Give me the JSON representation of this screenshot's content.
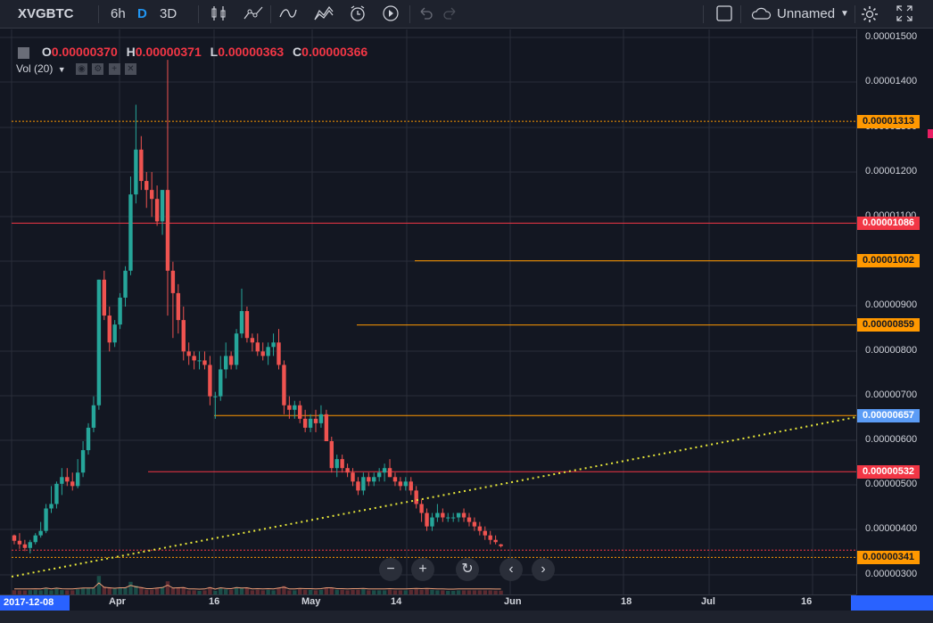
{
  "toolbar": {
    "symbol": "XVGBTC",
    "interval_6h": "6h",
    "interval_D": "D",
    "interval_3D": "3D",
    "layout_name": "Unnamed"
  },
  "legend": {
    "o_label": "O",
    "o_value": "0.00000370",
    "h_label": "H",
    "h_value": "0.00000371",
    "l_label": "L",
    "l_value": "0.00000363",
    "c_label": "C",
    "c_value": "0.00000366",
    "volume_label": "Vol (20)"
  },
  "price_axis": {
    "ticks": [
      "0.00001500",
      "0.00001400",
      "0.00001300",
      "0.00001200",
      "0.00001100",
      "0.00000900",
      "0.00000800",
      "0.00000700",
      "0.00000600",
      "0.00000500",
      "0.00000400",
      "0.00000300"
    ]
  },
  "price_tags": [
    {
      "label": "0.00001313",
      "color": "#ff9800"
    },
    {
      "label": "0.00001086",
      "color": "#f23645"
    },
    {
      "label": "0.00001002",
      "color": "#ff9800"
    },
    {
      "label": "0.00000859",
      "color": "#ff9800"
    },
    {
      "label": "0.00000657",
      "color": "#5b9cf6"
    },
    {
      "label": "0.00000532",
      "color": "#f23645"
    },
    {
      "label": "0.00000341",
      "color": "#ff9800"
    }
  ],
  "time_axis": {
    "start_date": "2017-12-08",
    "ticks": [
      "Apr",
      "16",
      "May",
      "14",
      "Jun",
      "18",
      "Jul",
      "16"
    ]
  },
  "chart_data": {
    "type": "candlestick",
    "ylim": [
      3e-06,
      1.52e-05
    ],
    "candles": [
      [
        3.9e-06,
        3.92e-06,
        3.7e-06,
        3.78e-06
      ],
      [
        3.78e-06,
        3.95e-06,
        3.6e-06,
        3.7e-06
      ],
      [
        3.7e-06,
        3.8e-06,
        3.55e-06,
        3.62e-06
      ],
      [
        3.62e-06,
        3.8e-06,
        3.5e-06,
        3.75e-06
      ],
      [
        3.75e-06,
        3.95e-06,
        3.7e-06,
        3.9e-06
      ],
      [
        3.9e-06,
        4.2e-06,
        3.85e-06,
        4e-06
      ],
      [
        4e-06,
        4.6e-06,
        3.95e-06,
        4.5e-06
      ],
      [
        4.5e-06,
        5e-06,
        4.4e-06,
        4.6e-06
      ],
      [
        4.6e-06,
        5.1e-06,
        4.5e-06,
        5.05e-06
      ],
      [
        5.05e-06,
        5.4e-06,
        4.8e-06,
        5.2e-06
      ],
      [
        5.2e-06,
        5.4e-06,
        5e-06,
        5.1e-06
      ],
      [
        5.1e-06,
        5.3e-06,
        4.9e-06,
        5e-06
      ],
      [
        5e-06,
        5.6e-06,
        4.95e-06,
        5.3e-06
      ],
      [
        5.3e-06,
        6e-06,
        5.2e-06,
        5.8e-06
      ],
      [
        5.8e-06,
        6.4e-06,
        5.7e-06,
        6.3e-06
      ],
      [
        6.3e-06,
        7e-06,
        6.2e-06,
        6.8e-06
      ],
      [
        6.8e-06,
        9.6e-06,
        6.7e-06,
        9.6e-06
      ],
      [
        9.6e-06,
        9.8e-06,
        8.7e-06,
        8.8e-06
      ],
      [
        8.8e-06,
        9e-06,
        8e-06,
        8.2e-06
      ],
      [
        8.2e-06,
        8.7e-06,
        8.1e-06,
        8.6e-06
      ],
      [
        8.6e-06,
        9.3e-06,
        8.5e-06,
        9.2e-06
      ],
      [
        9.2e-06,
        9.9e-06,
        9e-06,
        9.8e-06
      ],
      [
        9.8e-06,
        1.19e-05,
        9.7e-06,
        1.15e-05
      ],
      [
        1.15e-05,
        1.35e-05,
        1.13e-05,
        1.25e-05
      ],
      [
        1.25e-05,
        1.28e-05,
        1.16e-05,
        1.18e-05
      ],
      [
        1.18e-05,
        1.2e-05,
        1.12e-05,
        1.16e-05
      ],
      [
        1.16e-05,
        1.2e-05,
        1.1e-05,
        1.14e-05
      ],
      [
        1.14e-05,
        1.17e-05,
        1.08e-05,
        1.09e-05
      ],
      [
        1.09e-05,
        1.16e-05,
        1.06e-05,
        1.16e-05
      ],
      [
        1.16e-05,
        1.45e-05,
        8.8e-06,
        9.8e-06
      ],
      [
        9.8e-06,
        1e-05,
        8.3e-06,
        9.3e-06
      ],
      [
        9.3e-06,
        9.5e-06,
        8.4e-06,
        8.7e-06
      ],
      [
        8.7e-06,
        9e-06,
        7.8e-06,
        8e-06
      ],
      [
        8e-06,
        8.2e-06,
        7.7e-06,
        7.9e-06
      ],
      [
        7.9e-06,
        8e-06,
        7.6e-06,
        7.8e-06
      ],
      [
        7.8e-06,
        8e-06,
        7.6e-06,
        7.8e-06
      ],
      [
        7.8e-06,
        8e-06,
        7.6e-06,
        7.7e-06
      ],
      [
        7.7e-06,
        7.9e-06,
        6.8e-06,
        7e-06
      ],
      [
        7e-06,
        7.1e-06,
        6.5e-06,
        7e-06
      ],
      [
        7e-06,
        7.9e-06,
        6.9e-06,
        7.6e-06
      ],
      [
        7.6e-06,
        8.2e-06,
        7.4e-06,
        7.9e-06
      ],
      [
        7.9e-06,
        8e-06,
        7.6e-06,
        7.7e-06
      ],
      [
        7.7e-06,
        8.5e-06,
        7.6e-06,
        8.4e-06
      ],
      [
        8.4e-06,
        9.4e-06,
        8.3e-06,
        8.9e-06
      ],
      [
        8.9e-06,
        9e-06,
        8.2e-06,
        8.3e-06
      ],
      [
        8.3e-06,
        8.4e-06,
        8e-06,
        8.2e-06
      ],
      [
        8.2e-06,
        8.4e-06,
        7.9e-06,
        8e-06
      ],
      [
        8e-06,
        8.2e-06,
        7.8e-06,
        7.9e-06
      ],
      [
        7.9e-06,
        8.2e-06,
        7.7e-06,
        8.1e-06
      ],
      [
        8.1e-06,
        8.4e-06,
        7.9e-06,
        8.2e-06
      ],
      [
        8.2e-06,
        8.5e-06,
        7.6e-06,
        7.7e-06
      ],
      [
        7.7e-06,
        7.8e-06,
        6.6e-06,
        6.8e-06
      ],
      [
        6.8e-06,
        7e-06,
        6.5e-06,
        6.7e-06
      ],
      [
        6.7e-06,
        6.9e-06,
        6.5e-06,
        6.8e-06
      ],
      [
        6.8e-06,
        6.9e-06,
        6.4e-06,
        6.5e-06
      ],
      [
        6.5e-06,
        6.7e-06,
        6.2e-06,
        6.3e-06
      ],
      [
        6.3e-06,
        6.6e-06,
        6.2e-06,
        6.5e-06
      ],
      [
        6.5e-06,
        6.7e-06,
        6.2e-06,
        6.4e-06
      ],
      [
        6.4e-06,
        6.8e-06,
        6.3e-06,
        6.6e-06
      ],
      [
        6.6e-06,
        6.7e-06,
        6e-06,
        6e-06
      ],
      [
        6e-06,
        6.1e-06,
        5.3e-06,
        5.4e-06
      ],
      [
        5.4e-06,
        5.7e-06,
        5.2e-06,
        5.6e-06
      ],
      [
        5.6e-06,
        5.7e-06,
        5.3e-06,
        5.4e-06
      ],
      [
        5.4e-06,
        5.5e-06,
        5.2e-06,
        5.3e-06
      ],
      [
        5.3e-06,
        5.4e-06,
        5e-06,
        5.1e-06
      ],
      [
        5.1e-06,
        5.2e-06,
        4.8e-06,
        4.9e-06
      ],
      [
        4.9e-06,
        5.3e-06,
        4.8e-06,
        5.2e-06
      ],
      [
        5.2e-06,
        5.3e-06,
        5e-06,
        5.1e-06
      ],
      [
        5.1e-06,
        5.3e-06,
        5e-06,
        5.2e-06
      ],
      [
        5.2e-06,
        5.4e-06,
        5.1e-06,
        5.3e-06
      ],
      [
        5.3e-06,
        5.5e-06,
        5.1e-06,
        5.4e-06
      ],
      [
        5.4e-06,
        5.6e-06,
        5.2e-06,
        5.2e-06
      ],
      [
        5.2e-06,
        5.3e-06,
        5e-06,
        5.1e-06
      ],
      [
        5.1e-06,
        5.2e-06,
        4.9e-06,
        5e-06
      ],
      [
        5e-06,
        5.2e-06,
        4.9e-06,
        5.1e-06
      ],
      [
        5.1e-06,
        5.2e-06,
        4.8e-06,
        4.9e-06
      ],
      [
        4.9e-06,
        5e-06,
        4.5e-06,
        4.6e-06
      ],
      [
        4.6e-06,
        4.7e-06,
        4.2e-06,
        4.4e-06
      ],
      [
        4.4e-06,
        4.5e-06,
        4e-06,
        4.1e-06
      ],
      [
        4.1e-06,
        4.4e-06,
        4e-06,
        4.3e-06
      ],
      [
        4.3e-06,
        4.6e-06,
        4.2e-06,
        4.4e-06
      ],
      [
        4.4e-06,
        4.5e-06,
        4.2e-06,
        4.3e-06
      ],
      [
        4.3e-06,
        4.4e-06,
        4.2e-06,
        4.3e-06
      ],
      [
        4.3e-06,
        4.4e-06,
        4.2e-06,
        4.3e-06
      ],
      [
        4.3e-06,
        4.4e-06,
        4.2e-06,
        4.4e-06
      ],
      [
        4.4e-06,
        4.5e-06,
        4.2e-06,
        4.3e-06
      ],
      [
        4.3e-06,
        4.4e-06,
        4.1e-06,
        4.2e-06
      ],
      [
        4.2e-06,
        4.3e-06,
        4e-06,
        4.1e-06
      ],
      [
        4.1e-06,
        4.2e-06,
        3.9e-06,
        4e-06
      ],
      [
        4e-06,
        4.1e-06,
        3.8e-06,
        3.9e-06
      ],
      [
        3.9e-06,
        4e-06,
        3.7e-06,
        3.8e-06
      ],
      [
        3.8e-06,
        3.9e-06,
        3.7e-06,
        3.75e-06
      ],
      [
        3.7e-06,
        3.71e-06,
        3.63e-06,
        3.66e-06
      ]
    ],
    "horizontal_levels": [
      {
        "value": 1.313e-05,
        "color": "#ff9800",
        "style": "dotted"
      },
      {
        "value": 1.086e-05,
        "color": "#f23645",
        "style": "solid"
      },
      {
        "value": 1.002e-05,
        "color": "#ff9800",
        "style": "solid"
      },
      {
        "value": 8.59e-06,
        "color": "#ff9800",
        "style": "solid"
      },
      {
        "value": 6.57e-06,
        "color": "#ff9800",
        "style": "solid"
      },
      {
        "value": 5.32e-06,
        "color": "#f23645",
        "style": "solid"
      },
      {
        "value": 3.57e-06,
        "color": "#f23645",
        "style": "dotted"
      },
      {
        "value": 3.41e-06,
        "color": "#ff9800",
        "style": "dotted"
      }
    ],
    "trendline": {
      "color": "#e8e83a",
      "style": "dotted"
    },
    "grid": true,
    "up_color": "#26a69a",
    "down_color": "#ef5350"
  }
}
